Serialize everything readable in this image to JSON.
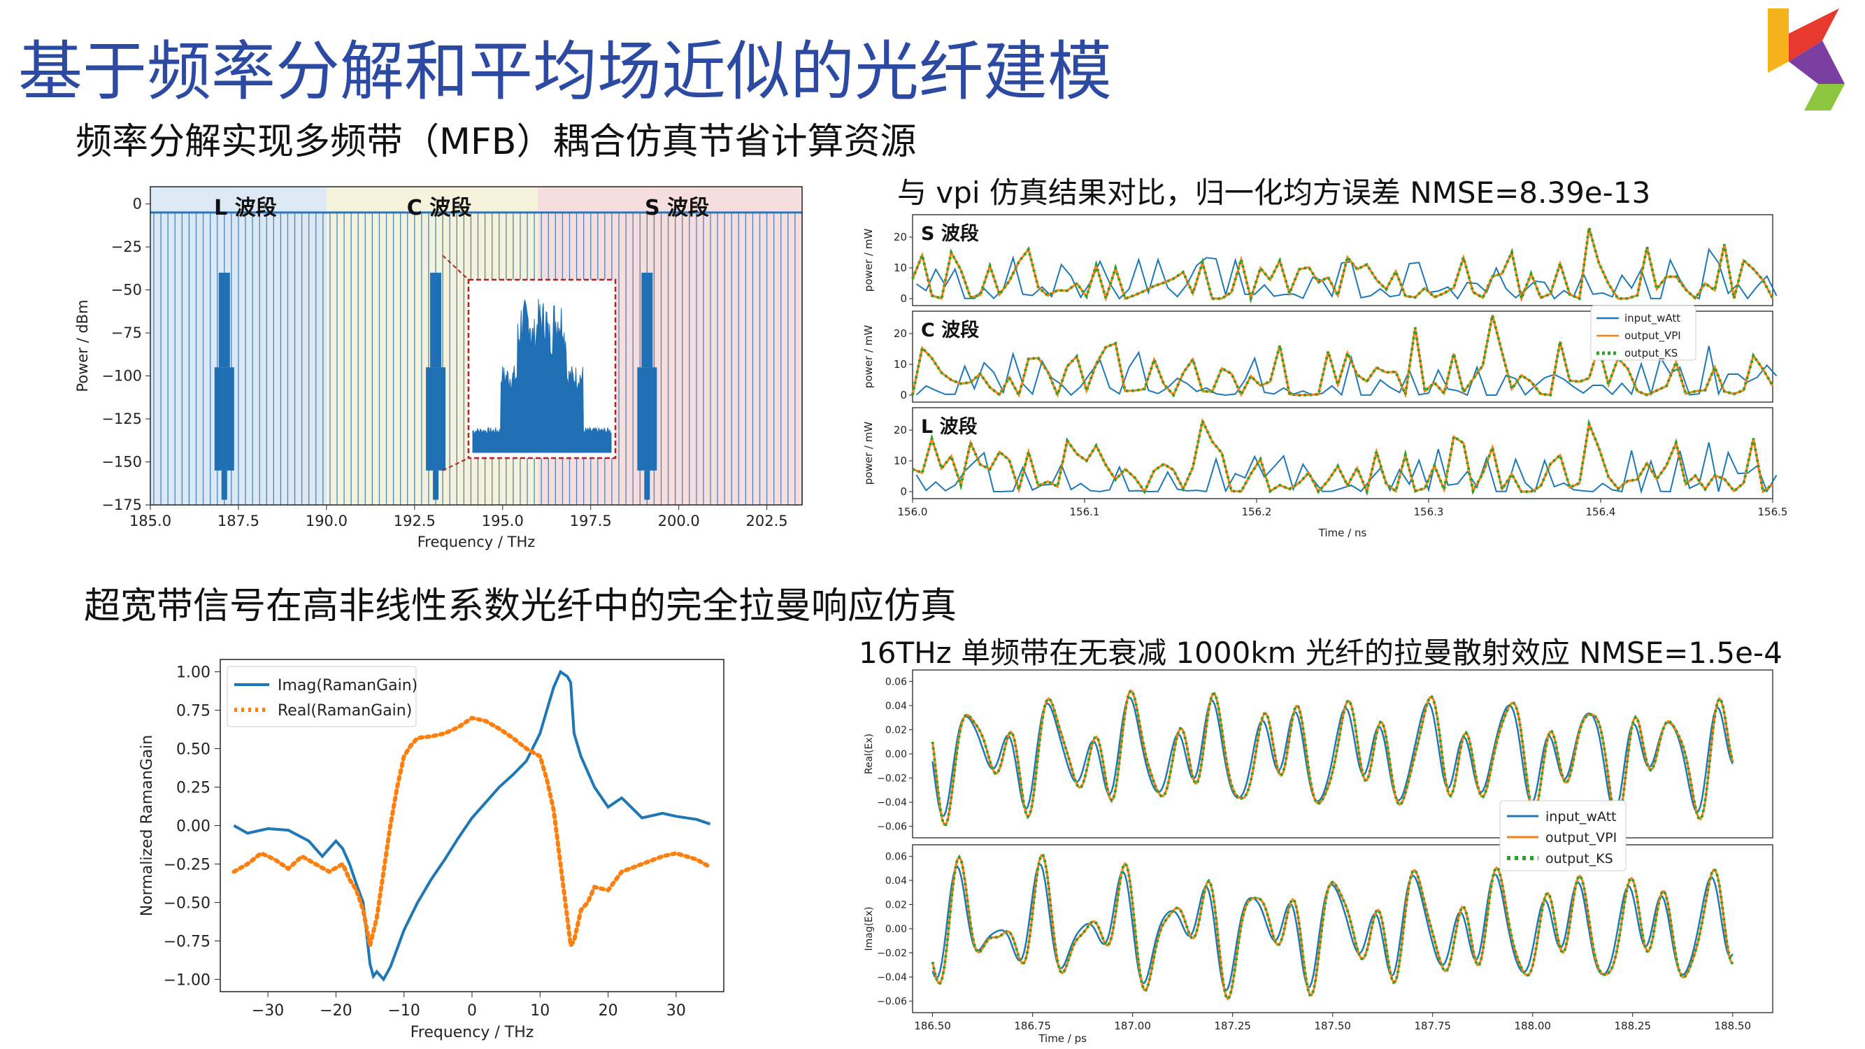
{
  "page": {
    "title": "基于频率分解和平均场近似的光纤建模",
    "section1": "频率分解实现多频带（MFB）耦合仿真节省计算资源",
    "section2": "超宽带信号在高非线性系数光纤中的完全拉曼响应仿真",
    "caption_top_right": "与 vpi 仿真结果对比，归一化均方误差  NMSE=8.39e-13",
    "caption_bottom_right": "16THz 单频带在无衰减 1000km 光纤的拉曼散射效应   NMSE=1.5e-4",
    "logo_colors": [
      "#f5b21a",
      "#e8392f",
      "#7a3fa0",
      "#8cc63f"
    ]
  },
  "chart_data": [
    {
      "id": "spectrum",
      "type": "line",
      "xlabel": "Frequency / THz",
      "ylabel": "Power / dBm",
      "xlim": [
        185.0,
        203.5
      ],
      "ylim": [
        -175,
        10
      ],
      "xticks": [
        "185.0",
        "187.5",
        "190.0",
        "192.5",
        "195.0",
        "197.5",
        "200.0",
        "202.5"
      ],
      "yticks": [
        "0",
        "−25",
        "−50",
        "−75",
        "−100",
        "−125",
        "−150",
        "−175"
      ],
      "bands": [
        {
          "name": "L  波段",
          "from": 185.0,
          "to": 190.0,
          "color": "#dce8f4"
        },
        {
          "name": "C  波段",
          "from": 190.0,
          "to": 196.0,
          "color": "#f5f2dc"
        },
        {
          "name": "S  波段",
          "from": 196.0,
          "to": 203.5,
          "color": "#f6dede"
        }
      ],
      "peaks_thz": [
        187.1,
        193.1,
        199.1
      ],
      "floor_dbm": -5,
      "peak_floor_dbm": -155
    },
    {
      "id": "power_time",
      "type": "line",
      "xlabel": "Time / ns",
      "ylabel": "power / mW",
      "xlim": [
        156.0,
        156.5
      ],
      "xticks": [
        "156.0",
        "156.1",
        "156.2",
        "156.3",
        "156.4",
        "156.5"
      ],
      "yticks": [
        "0",
        "10",
        "20"
      ],
      "ylim": [
        0,
        25
      ],
      "panels": [
        "S  波段",
        "C  波段",
        "L  波段"
      ],
      "legend": [
        "input_wAtt",
        "output_VPI",
        "output_KS"
      ],
      "colors": [
        "#1f77b4",
        "#ff7f0e",
        "#2ca02c"
      ]
    },
    {
      "id": "raman_gain",
      "type": "line",
      "xlabel": "Frequency / THz",
      "ylabel": "Normalized RamanGain",
      "xlim": [
        -37,
        37
      ],
      "ylim": [
        -1.08,
        1.08
      ],
      "xticks": [
        "−30",
        "−20",
        "−10",
        "0",
        "10",
        "20",
        "30"
      ],
      "yticks": [
        "1.00",
        "0.75",
        "0.50",
        "0.25",
        "0.00",
        "−0.25",
        "−0.50",
        "−0.75",
        "−1.00"
      ],
      "legend": [
        "Imag(RamanGain)",
        "Real(RamanGain)"
      ],
      "series": [
        {
          "name": "Imag(RamanGain)",
          "x": [
            -35,
            -33,
            -30,
            -27,
            -24,
            -22,
            -20,
            -19,
            -18,
            -17,
            -16,
            -15,
            -14.5,
            -14,
            -13,
            -12,
            -11,
            -10,
            -8,
            -6,
            -4,
            -2,
            0,
            2,
            4,
            6,
            8,
            10,
            11,
            12,
            13,
            14,
            14.5,
            15,
            16,
            17,
            18,
            20,
            22,
            25,
            28,
            30,
            33,
            35
          ],
          "y": [
            0.0,
            -0.05,
            -0.02,
            -0.03,
            -0.1,
            -0.2,
            -0.1,
            -0.15,
            -0.25,
            -0.38,
            -0.5,
            -0.9,
            -0.98,
            -0.95,
            -1.0,
            -0.92,
            -0.8,
            -0.68,
            -0.5,
            -0.35,
            -0.22,
            -0.08,
            0.05,
            0.15,
            0.25,
            0.33,
            0.42,
            0.6,
            0.75,
            0.9,
            1.0,
            0.97,
            0.93,
            0.6,
            0.45,
            0.35,
            0.25,
            0.12,
            0.18,
            0.05,
            0.08,
            0.06,
            0.04,
            0.01
          ]
        },
        {
          "name": "Real(RamanGain)",
          "x": [
            -35,
            -33,
            -31,
            -29,
            -27,
            -25,
            -23,
            -21,
            -19,
            -18,
            -17,
            -16,
            -15,
            -14,
            -13,
            -12,
            -11,
            -10,
            -9,
            -8,
            -6,
            -4,
            -2,
            0,
            2,
            4,
            6,
            8,
            10,
            11,
            12,
            13,
            14,
            14.5,
            15,
            16,
            17,
            18,
            20,
            22,
            25,
            28,
            30,
            33,
            35
          ],
          "y": [
            -0.3,
            -0.25,
            -0.18,
            -0.22,
            -0.28,
            -0.2,
            -0.25,
            -0.3,
            -0.25,
            -0.35,
            -0.42,
            -0.55,
            -0.78,
            -0.6,
            -0.3,
            0.0,
            0.25,
            0.45,
            0.52,
            0.57,
            0.58,
            0.6,
            0.64,
            0.7,
            0.68,
            0.63,
            0.57,
            0.5,
            0.45,
            0.3,
            0.1,
            -0.25,
            -0.6,
            -0.78,
            -0.75,
            -0.55,
            -0.5,
            -0.4,
            -0.42,
            -0.3,
            -0.25,
            -0.2,
            -0.18,
            -0.22,
            -0.27
          ]
        }
      ]
    },
    {
      "id": "field_time",
      "type": "line",
      "xlabel": "Time / ps",
      "xlim": [
        186.45,
        188.6
      ],
      "ylim": [
        -0.065,
        0.065
      ],
      "xticks": [
        "186.50",
        "186.75",
        "187.00",
        "187.25",
        "187.50",
        "187.75",
        "188.00",
        "188.25",
        "188.50"
      ],
      "yticks": [
        "0.06",
        "0.04",
        "0.02",
        "0.00",
        "−0.02",
        "−0.04",
        "−0.06"
      ],
      "panels": [
        "Real(Ex)",
        "Imag(Ex)"
      ],
      "legend": [
        "input_wAtt",
        "output_VPI",
        "output_KS"
      ],
      "colors": [
        "#1f77b4",
        "#ff7f0e",
        "#2ca02c"
      ]
    }
  ]
}
